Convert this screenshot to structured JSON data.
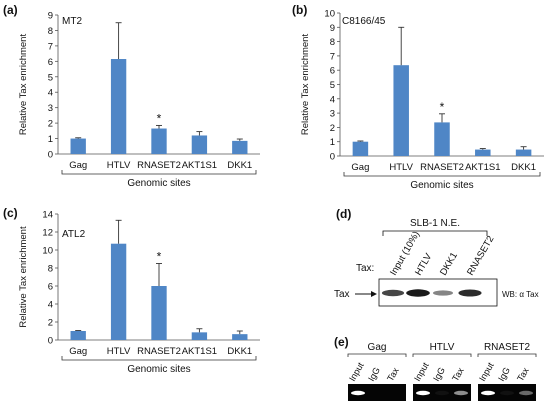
{
  "chart_data": [
    {
      "type": "bar",
      "panel_label": "(a)",
      "title": "MT2",
      "ylabel": "Relative Tax enrichment",
      "xlabel": "Genomic sites",
      "categories": [
        "Gag",
        "HTLV",
        "RNASET2",
        "AKT1S1",
        "DKK1"
      ],
      "values": [
        1.0,
        6.15,
        1.65,
        1.2,
        0.85
      ],
      "errors": [
        0.05,
        2.35,
        0.2,
        0.25,
        0.12
      ],
      "ylim": [
        0,
        9
      ],
      "yticks": [
        0,
        1,
        2,
        3,
        4,
        5,
        6,
        7,
        8,
        9
      ],
      "significance": [
        "",
        "",
        "*",
        "",
        ""
      ],
      "bar_color": "#4f86c6"
    },
    {
      "type": "bar",
      "panel_label": "(b)",
      "title": "C8166/45",
      "ylabel": "Relative Tax enrichment",
      "xlabel": "Genomic sites",
      "categories": [
        "Gag",
        "HTLV",
        "RNASET2",
        "AKT1S1",
        "DKK1"
      ],
      "values": [
        1.0,
        6.35,
        2.35,
        0.45,
        0.45
      ],
      "errors": [
        0.05,
        2.65,
        0.6,
        0.07,
        0.2
      ],
      "ylim": [
        0,
        10
      ],
      "yticks": [
        0,
        1,
        2,
        3,
        4,
        5,
        6,
        7,
        8,
        9,
        10
      ],
      "significance": [
        "",
        "",
        "*",
        "",
        ""
      ],
      "bar_color": "#4f86c6"
    },
    {
      "type": "bar",
      "panel_label": "(c)",
      "title": "ATL2",
      "ylabel": "Relative Tax enrichment",
      "xlabel": "Genomic sites",
      "categories": [
        "Gag",
        "HTLV",
        "RNASET2",
        "AKT1S1",
        "DKK1"
      ],
      "values": [
        1.0,
        10.7,
        6.0,
        0.85,
        0.65
      ],
      "errors": [
        0.05,
        2.6,
        2.5,
        0.4,
        0.35
      ],
      "ylim": [
        0,
        14
      ],
      "yticks": [
        0,
        2,
        4,
        6,
        8,
        10,
        12,
        14
      ],
      "significance": [
        "",
        "",
        "*",
        "",
        ""
      ],
      "bar_color": "#4f86c6"
    }
  ],
  "panel_d": {
    "label": "(d)",
    "header": "SLB-1 N.E.",
    "lanes": [
      "Input (10%)",
      "HTLV",
      "DKK1",
      "RNASET2"
    ],
    "row_label": "Tax:",
    "band_label": "Tax",
    "wb_label": "WB: α Tax",
    "band_intensity": [
      0.7,
      0.95,
      0.35,
      0.85
    ]
  },
  "panel_e": {
    "label": "(e)",
    "groups": [
      {
        "name": "Gag",
        "lanes": [
          "Input",
          "IgG",
          "Tax"
        ],
        "band_intensity": [
          1.0,
          0.0,
          0.0
        ]
      },
      {
        "name": "HTLV",
        "lanes": [
          "Input",
          "IgG",
          "Tax"
        ],
        "band_intensity": [
          1.0,
          0.05,
          0.55
        ]
      },
      {
        "name": "RNASET2",
        "lanes": [
          "Input",
          "IgG",
          "Tax"
        ],
        "band_intensity": [
          1.0,
          0.05,
          0.4
        ]
      }
    ]
  }
}
